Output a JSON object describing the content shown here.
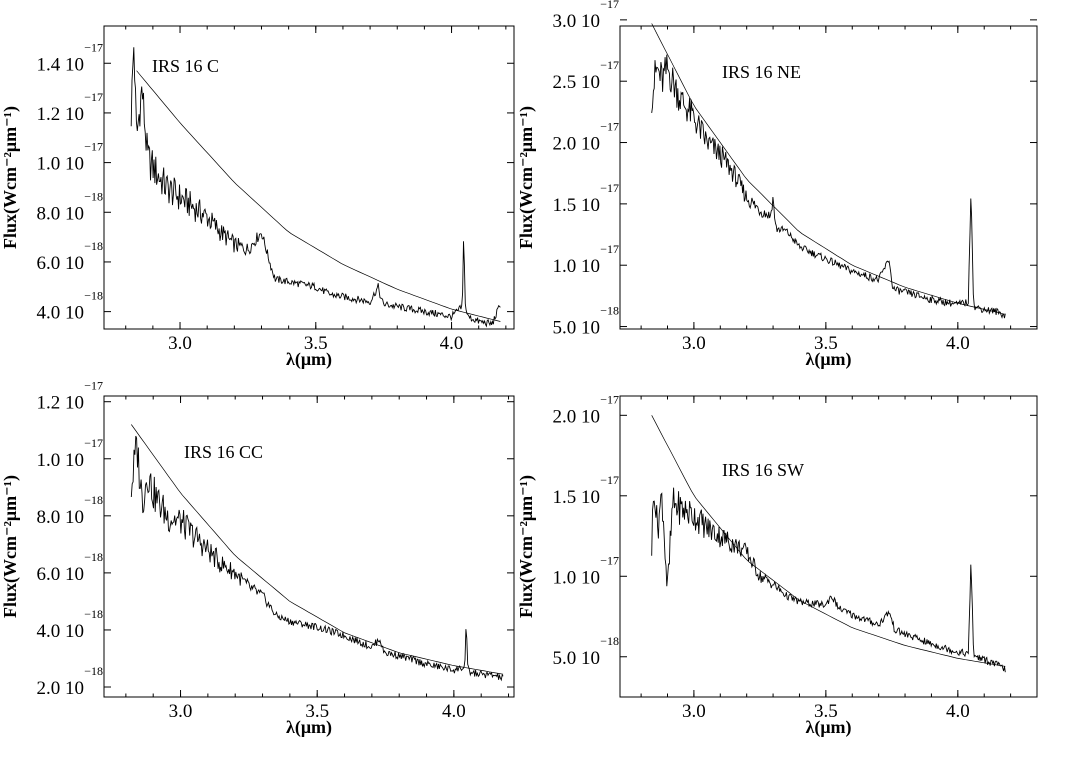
{
  "chart_data": [
    {
      "type": "line",
      "panel_label": "IRS 16 C",
      "xlabel": "λ(μm)",
      "ylabel": "Flux(Wcm⁻²μm⁻¹)",
      "xlim": [
        2.72,
        4.23
      ],
      "ylim": [
        3.3e-18,
        1.55e-17
      ],
      "xticks": [
        {
          "v": 3.0,
          "label": "3.0"
        },
        {
          "v": 3.5,
          "label": "3.5"
        },
        {
          "v": 4.0,
          "label": "4.0"
        }
      ],
      "yticks": [
        {
          "v": 4e-18,
          "m": "4.0 10",
          "e": "−18"
        },
        {
          "v": 6e-18,
          "m": "6.0 10",
          "e": "−18"
        },
        {
          "v": 8e-18,
          "m": "8.0 10",
          "e": "−18"
        },
        {
          "v": 1e-17,
          "m": "1.0 10",
          "e": "−17"
        },
        {
          "v": 1.2e-17,
          "m": "1.2 10",
          "e": "−17"
        },
        {
          "v": 1.4e-17,
          "m": "1.4 10",
          "e": "−17"
        }
      ],
      "series": [
        {
          "role": "spectrum",
          "x": [
            2.82,
            2.83,
            2.84,
            2.86,
            2.88,
            2.9,
            2.95,
            3.0,
            3.05,
            3.1,
            3.15,
            3.2,
            3.25,
            3.3,
            3.33,
            3.35,
            3.4,
            3.45,
            3.5,
            3.55,
            3.6,
            3.7,
            3.73,
            3.74,
            3.75,
            3.8,
            3.9,
            4.0,
            4.04,
            4.045,
            4.05,
            4.06,
            4.1,
            4.15,
            4.18
          ],
          "y": [
            1.2e-17,
            1.48e-17,
            1.1e-17,
            1.3e-17,
            1.02e-17,
            9.8e-18,
            9e-18,
            8.6e-18,
            8.2e-18,
            7.8e-18,
            7.2e-18,
            6.7e-18,
            6.5e-18,
            7.2e-18,
            6e-18,
            5.3e-18,
            5.2e-18,
            5.1e-18,
            5e-18,
            4.7e-18,
            4.6e-18,
            4.4e-18,
            5e-18,
            4.5e-18,
            4.3e-18,
            4.2e-18,
            4e-18,
            3.8e-18,
            4.2e-18,
            7.4e-18,
            4.3e-18,
            3.8e-18,
            3.6e-18,
            3.5e-18,
            4.3e-18
          ]
        },
        {
          "role": "model",
          "x": [
            2.84,
            3.0,
            3.2,
            3.4,
            3.6,
            3.8,
            4.0,
            4.18
          ],
          "y": [
            1.37e-17,
            1.16e-17,
            9.2e-18,
            7.2e-18,
            5.9e-18,
            4.9e-18,
            4.1e-18,
            3.6e-18
          ]
        }
      ]
    },
    {
      "type": "line",
      "panel_label": "IRS 16 NE",
      "xlabel": "λ(μm)",
      "ylabel": "Flux(Wcm⁻²μm⁻¹)",
      "xlim": [
        2.72,
        4.3
      ],
      "ylim": [
        4.8e-18,
        2.95e-17
      ],
      "xticks": [
        {
          "v": 3.0,
          "label": "3.0"
        },
        {
          "v": 3.5,
          "label": "3.5"
        },
        {
          "v": 4.0,
          "label": "4.0"
        }
      ],
      "yticks": [
        {
          "v": 5e-18,
          "m": "5.0 10",
          "e": "−18"
        },
        {
          "v": 1e-17,
          "m": "1.0 10",
          "e": "−17"
        },
        {
          "v": 1.5e-17,
          "m": "1.5 10",
          "e": "−17"
        },
        {
          "v": 2e-17,
          "m": "2.0 10",
          "e": "−17"
        },
        {
          "v": 2.5e-17,
          "m": "2.5 10",
          "e": "−17"
        },
        {
          "v": 3e-17,
          "m": "3.0 10",
          "e": "−17"
        }
      ],
      "series": [
        {
          "role": "spectrum",
          "x": [
            2.84,
            2.86,
            2.88,
            2.9,
            2.95,
            3.0,
            3.05,
            3.1,
            3.15,
            3.2,
            3.25,
            3.29,
            3.3,
            3.31,
            3.35,
            3.4,
            3.5,
            3.6,
            3.7,
            3.74,
            3.75,
            3.76,
            3.8,
            3.9,
            4.0,
            4.04,
            4.05,
            4.06,
            4.1,
            4.15,
            4.18
          ],
          "y": [
            2.4e-17,
            2.6e-17,
            2.5e-17,
            2.6e-17,
            2.35e-17,
            2.2e-17,
            2e-17,
            1.9e-17,
            1.75e-17,
            1.55e-17,
            1.45e-17,
            1.4e-17,
            1.55e-17,
            1.3e-17,
            1.28e-17,
            1.15e-17,
            1.05e-17,
            9.5e-18,
            8.8e-18,
            1.05e-17,
            8.5e-18,
            8e-18,
            7.8e-18,
            7.2e-18,
            6.8e-18,
            7e-18,
            1.65e-17,
            6.6e-18,
            6.4e-18,
            6.2e-18,
            5.9e-18
          ]
        },
        {
          "role": "model",
          "x": [
            2.84,
            3.0,
            3.2,
            3.4,
            3.6,
            3.8,
            4.0,
            4.18
          ],
          "y": [
            2.97e-17,
            2.3e-17,
            1.7e-17,
            1.27e-17,
            1e-17,
            8.2e-18,
            6.9e-18,
            6e-18
          ]
        }
      ]
    },
    {
      "type": "line",
      "panel_label": "IRS 16 CC",
      "xlabel": "λ(μm)",
      "ylabel": "Flux(Wcm⁻²μm⁻¹)",
      "xlim": [
        2.72,
        4.22
      ],
      "ylim": [
        1.65e-18,
        1.22e-17
      ],
      "xticks": [
        {
          "v": 3.0,
          "label": "3.0"
        },
        {
          "v": 3.5,
          "label": "3.5"
        },
        {
          "v": 4.0,
          "label": "4.0"
        }
      ],
      "yticks": [
        {
          "v": 2e-18,
          "m": "2.0 10",
          "e": "−18"
        },
        {
          "v": 4e-18,
          "m": "4.0 10",
          "e": "−18"
        },
        {
          "v": 6e-18,
          "m": "6.0 10",
          "e": "−18"
        },
        {
          "v": 8e-18,
          "m": "8.0 10",
          "e": "−18"
        },
        {
          "v": 1e-17,
          "m": "1.0 10",
          "e": "−17"
        },
        {
          "v": 1.2e-17,
          "m": "1.2 10",
          "e": "−17"
        }
      ],
      "series": [
        {
          "role": "spectrum",
          "x": [
            2.82,
            2.84,
            2.86,
            2.88,
            2.9,
            2.95,
            3.0,
            3.05,
            3.1,
            3.15,
            3.2,
            3.25,
            3.3,
            3.35,
            3.4,
            3.5,
            3.6,
            3.7,
            3.73,
            3.74,
            3.75,
            3.8,
            3.9,
            4.0,
            4.04,
            4.045,
            4.05,
            4.06,
            4.1,
            4.15,
            4.18
          ],
          "y": [
            9e-18,
            1.05e-17,
            8.5e-18,
            9.5e-18,
            8.8e-18,
            8e-18,
            7.8e-18,
            7.3e-18,
            6.8e-18,
            6.3e-18,
            6e-18,
            5.5e-18,
            5.2e-18,
            4.5e-18,
            4.3e-18,
            4.1e-18,
            3.8e-18,
            3.4e-18,
            3.7e-18,
            3.3e-18,
            3.2e-18,
            3.1e-18,
            2.8e-18,
            2.6e-18,
            2.7e-18,
            4.3e-18,
            2.7e-18,
            2.5e-18,
            2.45e-18,
            2.4e-18,
            2.3e-18
          ]
        },
        {
          "role": "model",
          "x": [
            2.82,
            3.0,
            3.2,
            3.4,
            3.6,
            3.8,
            4.0,
            4.18
          ],
          "y": [
            1.12e-17,
            8.8e-18,
            6.6e-18,
            5e-18,
            3.9e-18,
            3.2e-18,
            2.75e-18,
            2.45e-18
          ]
        }
      ]
    },
    {
      "type": "line",
      "panel_label": "IRS 16 SW",
      "xlabel": "λ(μm)",
      "ylabel": "Flux(Wcm⁻²μm⁻¹)",
      "xlim": [
        2.72,
        4.3
      ],
      "ylim": [
        2.5e-18,
        2.12e-17
      ],
      "xticks": [
        {
          "v": 3.0,
          "label": "3.0"
        },
        {
          "v": 3.5,
          "label": "3.5"
        },
        {
          "v": 4.0,
          "label": "4.0"
        }
      ],
      "yticks": [
        {
          "v": 5e-18,
          "m": "5.0 10",
          "e": "−18"
        },
        {
          "v": 1e-17,
          "m": "1.0 10",
          "e": "−17"
        },
        {
          "v": 1.5e-17,
          "m": "1.5 10",
          "e": "−17"
        },
        {
          "v": 2e-17,
          "m": "2.0 10",
          "e": "−17"
        }
      ],
      "series": [
        {
          "role": "spectrum",
          "x": [
            2.84,
            2.85,
            2.86,
            2.88,
            2.9,
            2.92,
            2.95,
            3.0,
            3.05,
            3.1,
            3.15,
            3.2,
            3.25,
            3.3,
            3.35,
            3.4,
            3.5,
            3.52,
            3.55,
            3.6,
            3.7,
            3.74,
            3.76,
            3.8,
            3.9,
            4.0,
            4.04,
            4.05,
            4.06,
            4.1,
            4.15,
            4.18
          ],
          "y": [
            1.2e-17,
            1.6e-17,
            1.3e-17,
            1.5e-17,
            9e-18,
            1.45e-17,
            1.42e-17,
            1.38e-17,
            1.3e-17,
            1.25e-17,
            1.2e-17,
            1.15e-17,
            1e-17,
            9.5e-18,
            8.8e-18,
            8.4e-18,
            8.2e-18,
            8.8e-18,
            8e-18,
            7.6e-18,
            7e-18,
            7.8e-18,
            6.7e-18,
            6.4e-18,
            5.8e-18,
            5.3e-18,
            5.2e-18,
            1.1e-17,
            5.1e-18,
            4.8e-18,
            4.5e-18,
            4.2e-18
          ]
        },
        {
          "role": "model",
          "x": [
            2.84,
            3.0,
            3.2,
            3.4,
            3.6,
            3.8,
            4.0,
            4.18
          ],
          "y": [
            2e-17,
            1.5e-17,
            1.1e-17,
            8.5e-18,
            6.8e-18,
            5.7e-18,
            4.9e-18,
            4.4e-18
          ]
        }
      ]
    }
  ]
}
